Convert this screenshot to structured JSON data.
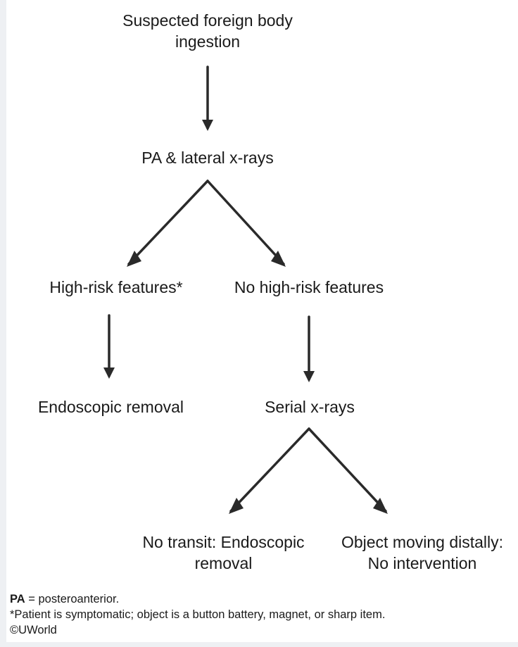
{
  "nodes": {
    "start": {
      "line1": "Suspected foreign body",
      "line2": "ingestion"
    },
    "xray": {
      "label": "PA & lateral x-rays"
    },
    "high_risk": {
      "label": "High-risk features*"
    },
    "no_high_risk": {
      "label": "No high-risk features"
    },
    "endoscopic_removal": {
      "label": "Endoscopic removal"
    },
    "serial_xrays": {
      "label": "Serial x-rays"
    },
    "no_transit": {
      "line1": "No transit: Endoscopic",
      "line2": "removal"
    },
    "moving_distally": {
      "line1": "Object moving distally:",
      "line2": "No intervention"
    }
  },
  "footnotes": {
    "abbr": "PA",
    "abbr_def": " = posteroanterior.",
    "asterisk": "*Patient is symptomatic; object is a button battery, magnet, or sharp item.",
    "copyright": "©UWorld"
  },
  "colors": {
    "line": "#2a2a2a",
    "text": "#1a1a1a"
  }
}
